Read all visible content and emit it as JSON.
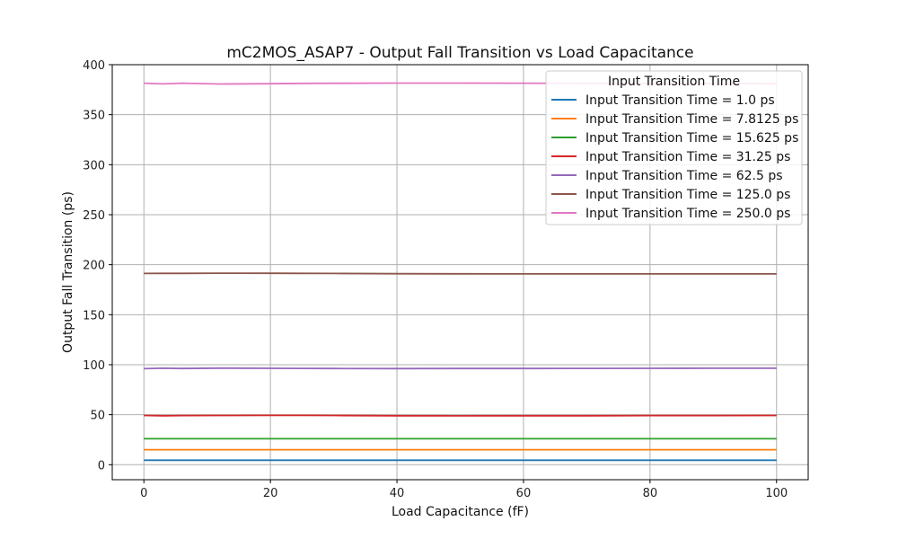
{
  "chart_data": {
    "type": "line",
    "title": "mC2MOS_ASAP7 - Output Fall Transition vs Load Capacitance",
    "xlabel": "Load Capacitance (fF)",
    "ylabel": "Output Fall Transition (ps)",
    "xlim": [
      -5,
      105
    ],
    "ylim": [
      -15,
      400
    ],
    "xticks": [
      0,
      20,
      40,
      60,
      80,
      100
    ],
    "yticks": [
      0,
      50,
      100,
      150,
      200,
      250,
      300,
      350,
      400
    ],
    "grid": true,
    "legend_title": "Input Transition Time",
    "legend_position": "top-right",
    "x": [
      0,
      3,
      6,
      12,
      20,
      25,
      30,
      40,
      50,
      60,
      70,
      80,
      90,
      100
    ],
    "series": [
      {
        "name": "Input Transition Time = 1.0 ps",
        "color": "#1f77b4",
        "values": [
          4.5,
          4.5,
          4.5,
          4.5,
          4.5,
          4.5,
          4.5,
          4.5,
          4.5,
          4.5,
          4.5,
          4.5,
          4.5,
          4.5
        ]
      },
      {
        "name": "Input Transition Time = 7.8125 ps",
        "color": "#ff7f0e",
        "values": [
          15,
          15,
          15,
          15,
          15,
          15,
          15,
          15,
          15,
          15,
          15,
          15,
          15,
          15
        ]
      },
      {
        "name": "Input Transition Time = 15.625 ps",
        "color": "#2ca02c",
        "values": [
          26,
          26,
          26,
          26,
          26,
          26,
          26,
          26,
          26,
          26,
          26,
          26,
          26,
          26
        ]
      },
      {
        "name": "Input Transition Time = 31.25 ps",
        "color": "#d62728",
        "values": [
          49.2,
          49.0,
          49.1,
          49.2,
          49.3,
          49.3,
          49.2,
          49.0,
          48.9,
          49.0,
          49.0,
          49.1,
          49.1,
          49.2
        ]
      },
      {
        "name": "Input Transition Time = 62.5 ps",
        "color": "#9467bd",
        "values": [
          96,
          96.5,
          96.2,
          96.6,
          96.4,
          96.3,
          96.2,
          96.1,
          96.2,
          96.2,
          96.3,
          96.4,
          96.5,
          96.5
        ]
      },
      {
        "name": "Input Transition Time = 125.0 ps",
        "color": "#8c564b",
        "values": [
          191.2,
          191.3,
          191.3,
          191.5,
          191.4,
          191.3,
          191.2,
          191.0,
          190.9,
          190.8,
          190.8,
          190.8,
          190.8,
          190.8
        ]
      },
      {
        "name": "Input Transition Time = 250.0 ps",
        "color": "#e377c2",
        "values": [
          381.5,
          380.8,
          381.5,
          380.7,
          381.0,
          381.3,
          381.4,
          381.6,
          381.6,
          381.5,
          381.3,
          381.2,
          381.1,
          381.0
        ]
      }
    ]
  }
}
